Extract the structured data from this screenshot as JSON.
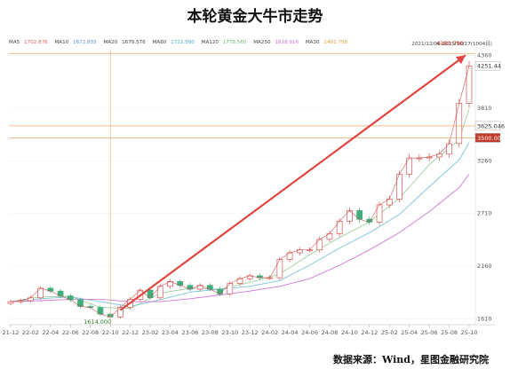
{
  "title": "本轮黄金大牛市走势",
  "legend": [
    {
      "label": "MA5",
      "value": "1702.876",
      "color": "#d4605a"
    },
    {
      "label": "MA10",
      "value": "1672.835",
      "color": "#5b8fd6"
    },
    {
      "label": "MA20",
      "value": "1679.576",
      "color": "#444444"
    },
    {
      "label": "MA60",
      "value": "1722.580",
      "color": "#4aa6c8"
    },
    {
      "label": "MA120",
      "value": "1778.560",
      "color": "#6fb86f"
    },
    {
      "label": "MA250",
      "value": "1818.916",
      "color": "#d070d0"
    },
    {
      "label": "MA30",
      "value": "1491.758",
      "color": "#e0a030"
    }
  ],
  "date_range": "2021/12/06-2025/10/17(1004日)",
  "source": "数据来源：Wind，星图金融研究院",
  "annotations": {
    "peak": "4380.790",
    "low": "1614.000",
    "current": "4251.44",
    "level_a": "3625.046",
    "level_b": "3500.00"
  },
  "colors": {
    "candle_up": "#d9534f",
    "candle_down": "#3fae7a",
    "arrow": "#e0453f",
    "hline": "#f0a868",
    "level_box": "#c0392b"
  },
  "chart_data": {
    "type": "candlestick",
    "title": "本轮黄金大牛市走势",
    "x_ticks": [
      "21-12",
      "22-02",
      "22-04",
      "22-06",
      "22-08",
      "22-10",
      "22-12",
      "23-02",
      "23-04",
      "23-06",
      "23-08",
      "23-10",
      "23-12",
      "24-02",
      "24-04",
      "24-06",
      "24-08",
      "24-10",
      "24-12",
      "25-02",
      "25-04",
      "25-06",
      "25-08",
      "25-10"
    ],
    "y_ticks": [
      1610,
      2160,
      2710,
      3260,
      3810,
      4360
    ],
    "ylim": [
      1550,
      4420
    ],
    "series": [
      {
        "name": "close",
        "points": [
          [
            "21-12",
            1790
          ],
          [
            "22-01",
            1800
          ],
          [
            "22-02",
            1830
          ],
          [
            "22-03",
            1930
          ],
          [
            "22-04",
            1900
          ],
          [
            "22-05",
            1850
          ],
          [
            "22-06",
            1810
          ],
          [
            "22-07",
            1740
          ],
          [
            "22-08",
            1730
          ],
          [
            "22-09",
            1660
          ],
          [
            "22-10",
            1630
          ],
          [
            "22-11",
            1730
          ],
          [
            "22-12",
            1815
          ],
          [
            "23-01",
            1910
          ],
          [
            "23-02",
            1830
          ],
          [
            "23-03",
            1950
          ],
          [
            "23-04",
            2000
          ],
          [
            "23-05",
            1960
          ],
          [
            "23-06",
            1920
          ],
          [
            "23-07",
            1960
          ],
          [
            "23-08",
            1920
          ],
          [
            "23-09",
            1870
          ],
          [
            "23-10",
            1980
          ],
          [
            "23-11",
            2030
          ],
          [
            "23-12",
            2060
          ],
          [
            "24-01",
            2040
          ],
          [
            "24-02",
            2040
          ],
          [
            "24-03",
            2230
          ],
          [
            "24-04",
            2300
          ],
          [
            "24-05",
            2330
          ],
          [
            "24-06",
            2330
          ],
          [
            "24-07",
            2440
          ],
          [
            "24-08",
            2500
          ],
          [
            "24-09",
            2630
          ],
          [
            "24-10",
            2740
          ],
          [
            "24-11",
            2650
          ],
          [
            "24-12",
            2620
          ],
          [
            "25-01",
            2800
          ],
          [
            "25-02",
            2860
          ],
          [
            "25-03",
            3120
          ],
          [
            "25-04",
            3290
          ],
          [
            "25-05",
            3290
          ],
          [
            "25-06",
            3300
          ],
          [
            "25-07",
            3330
          ],
          [
            "25-08",
            3440
          ],
          [
            "25-09",
            3860
          ],
          [
            "25-10",
            4251
          ]
        ]
      }
    ],
    "moving_averages": [
      {
        "name": "MA60",
        "points": [
          [
            "21-12",
            1790
          ],
          [
            "22-03",
            1840
          ],
          [
            "22-06",
            1845
          ],
          [
            "22-09",
            1730
          ],
          [
            "22-12",
            1720
          ],
          [
            "23-03",
            1880
          ],
          [
            "23-06",
            1930
          ],
          [
            "23-09",
            1920
          ],
          [
            "23-12",
            1990
          ],
          [
            "24-03",
            2080
          ],
          [
            "24-06",
            2280
          ],
          [
            "24-09",
            2460
          ],
          [
            "24-12",
            2620
          ],
          [
            "25-03",
            2870
          ],
          [
            "25-06",
            3220
          ],
          [
            "25-09",
            3480
          ],
          [
            "25-10",
            3800
          ]
        ]
      },
      {
        "name": "MA120",
        "points": [
          [
            "21-12",
            1790
          ],
          [
            "22-03",
            1820
          ],
          [
            "22-06",
            1840
          ],
          [
            "22-09",
            1790
          ],
          [
            "22-12",
            1740
          ],
          [
            "23-03",
            1810
          ],
          [
            "23-06",
            1890
          ],
          [
            "23-09",
            1920
          ],
          [
            "23-12",
            1950
          ],
          [
            "24-03",
            2010
          ],
          [
            "24-06",
            2170
          ],
          [
            "24-09",
            2350
          ],
          [
            "24-12",
            2510
          ],
          [
            "25-03",
            2700
          ],
          [
            "25-06",
            2990
          ],
          [
            "25-09",
            3270
          ],
          [
            "25-10",
            3450
          ]
        ]
      },
      {
        "name": "MA250",
        "points": [
          [
            "21-12",
            1790
          ],
          [
            "22-03",
            1800
          ],
          [
            "22-06",
            1815
          ],
          [
            "22-09",
            1815
          ],
          [
            "22-12",
            1790
          ],
          [
            "23-03",
            1790
          ],
          [
            "23-06",
            1820
          ],
          [
            "23-09",
            1860
          ],
          [
            "23-12",
            1900
          ],
          [
            "24-03",
            1950
          ],
          [
            "24-06",
            2030
          ],
          [
            "24-09",
            2170
          ],
          [
            "24-12",
            2330
          ],
          [
            "25-03",
            2510
          ],
          [
            "25-06",
            2730
          ],
          [
            "25-09",
            2980
          ],
          [
            "25-10",
            3120
          ]
        ]
      }
    ],
    "horizontal_levels": [
      3625.046,
      3500.0
    ],
    "peak_level": 4380.79,
    "low": {
      "x": "22-10",
      "value": 1614.0
    },
    "arrow": {
      "from": {
        "x": "22-11",
        "value": 1700
      },
      "to": {
        "x": "25-10",
        "value": 4380.79
      }
    }
  }
}
